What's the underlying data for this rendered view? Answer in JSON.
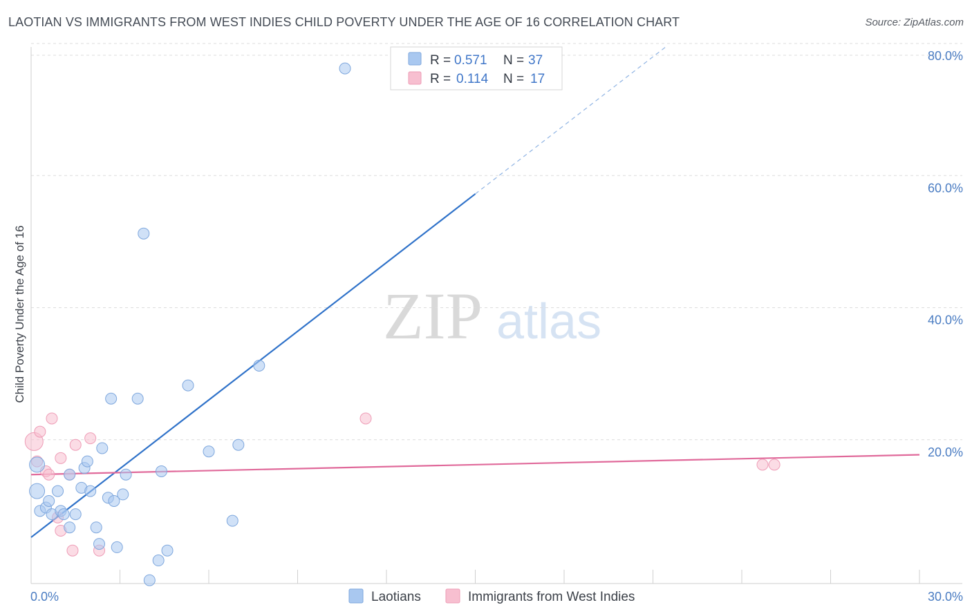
{
  "title": "LAOTIAN VS IMMIGRANTS FROM WEST INDIES CHILD POVERTY UNDER THE AGE OF 16 CORRELATION CHART",
  "source": "Source: ZipAtlas.com",
  "watermark": {
    "zip": "ZIP",
    "atlas": "atlas"
  },
  "colors": {
    "laotian_fill": "#a9c8f0",
    "laotian_stroke": "#7ea7dd",
    "laotian_line": "#2f72c9",
    "westindies_fill": "#f7bfd0",
    "westindies_stroke": "#ee9cb6",
    "westindies_line": "#e0699a",
    "axis_text": "#4a7cc2",
    "grid": "#dcdcdc"
  },
  "legend": {
    "rows": [
      {
        "r_label": "R =",
        "r_value": "0.571",
        "n_label": "N =",
        "n_value": "37"
      },
      {
        "r_label": "R =",
        "r_value": "0.114",
        "n_label": "N =",
        "n_value": "17"
      }
    ]
  },
  "chart_data": {
    "type": "scatter",
    "title": "LAOTIAN VS IMMIGRANTS FROM WEST INDIES CHILD POVERTY UNDER THE AGE OF 16 CORRELATION CHART",
    "xlabel": "",
    "ylabel": "Child Poverty Under the Age of 16",
    "xlim": [
      0,
      30
    ],
    "ylim": [
      0,
      80
    ],
    "x_tick_labels": [
      "0.0%",
      "30.0%"
    ],
    "y_ticks": [
      20,
      40,
      60,
      80
    ],
    "y_tick_labels": [
      "20.0%",
      "40.0%",
      "60.0%",
      "80.0%"
    ],
    "series": [
      {
        "name": "Laotians",
        "r": 0.571,
        "n": 37,
        "trend": {
          "x0": 0,
          "y0": 7.0,
          "x_solid_end": 15.0,
          "y_solid_end": 59.0,
          "x_dash_end": 21.5,
          "y_dash_end": 81.5
        },
        "points": [
          [
            0.2,
            18.0
          ],
          [
            0.2,
            14.0
          ],
          [
            0.3,
            11.0
          ],
          [
            0.5,
            11.5
          ],
          [
            0.6,
            12.5
          ],
          [
            0.7,
            10.5
          ],
          [
            0.9,
            14.0
          ],
          [
            1.0,
            11.0
          ],
          [
            1.1,
            10.5
          ],
          [
            1.3,
            8.5
          ],
          [
            1.5,
            10.5
          ],
          [
            1.3,
            16.5
          ],
          [
            1.7,
            14.5
          ],
          [
            1.8,
            17.5
          ],
          [
            1.9,
            18.5
          ],
          [
            2.0,
            14.0
          ],
          [
            2.2,
            8.5
          ],
          [
            2.3,
            6.0
          ],
          [
            2.4,
            20.5
          ],
          [
            2.6,
            13.0
          ],
          [
            2.7,
            28.0
          ],
          [
            2.8,
            12.5
          ],
          [
            2.9,
            5.5
          ],
          [
            3.1,
            13.5
          ],
          [
            3.2,
            16.5
          ],
          [
            3.6,
            28.0
          ],
          [
            3.8,
            53.0
          ],
          [
            4.0,
            0.5
          ],
          [
            4.3,
            3.5
          ],
          [
            4.4,
            17.0
          ],
          [
            4.6,
            5.0
          ],
          [
            5.3,
            30.0
          ],
          [
            6.0,
            20.0
          ],
          [
            6.8,
            9.5
          ],
          [
            7.0,
            21.0
          ],
          [
            7.7,
            33.0
          ],
          [
            10.6,
            78.0
          ]
        ]
      },
      {
        "name": "Immigrants from West Indies",
        "r": 0.114,
        "n": 17,
        "trend": {
          "x0": 0,
          "y0": 16.5,
          "x1": 30,
          "y1": 19.5
        },
        "points": [
          [
            0.1,
            21.5
          ],
          [
            0.2,
            18.5
          ],
          [
            0.3,
            23.0
          ],
          [
            0.5,
            17.0
          ],
          [
            0.6,
            16.5
          ],
          [
            0.7,
            25.0
          ],
          [
            0.9,
            10.0
          ],
          [
            1.0,
            8.0
          ],
          [
            1.0,
            19.0
          ],
          [
            1.3,
            16.5
          ],
          [
            1.4,
            5.0
          ],
          [
            1.5,
            21.0
          ],
          [
            2.0,
            22.0
          ],
          [
            2.3,
            5.0
          ],
          [
            11.3,
            25.0
          ],
          [
            24.7,
            18.0
          ],
          [
            25.1,
            18.0
          ]
        ]
      }
    ]
  }
}
